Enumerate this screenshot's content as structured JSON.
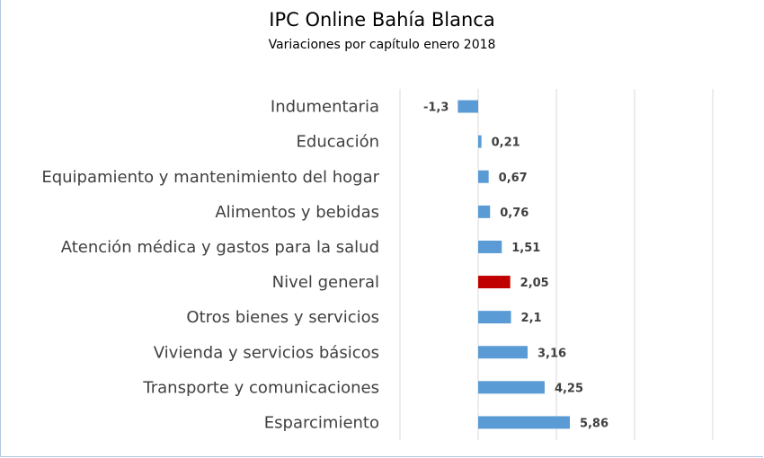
{
  "chart_data": {
    "type": "bar",
    "orientation": "horizontal",
    "title": "IPC Online Bahía Blanca",
    "subtitle": "Variaciones por capítulo enero 2018",
    "categories": [
      "Indumentaria",
      "Educación",
      "Equipamiento y mantenimiento del hogar",
      "Alimentos y bebidas",
      "Atención médica y gastos para la salud",
      "Nivel general",
      "Otros bienes y servicios",
      "Vivienda y servicios básicos",
      "Transporte y comunicaciones",
      "Esparcimiento"
    ],
    "values": [
      -1.3,
      0.21,
      0.67,
      0.76,
      1.51,
      2.05,
      2.1,
      3.16,
      4.25,
      5.86
    ],
    "data_labels": [
      "-1,3",
      "0,21",
      "0,67",
      "0,76",
      "1,51",
      "2,05",
      "2,1",
      "3,16",
      "4,25",
      "5,86"
    ],
    "xlim": [
      -5,
      15
    ],
    "gridlines_at": [
      -5,
      0,
      5,
      10,
      15
    ],
    "grid": true,
    "x_tick_labels_visible": false,
    "legend": "none",
    "colors": {
      "default": "#5b9bd5",
      "highlight": "#c00000",
      "highlight_category": "Nivel general",
      "grid": "#d9d9d9"
    }
  }
}
